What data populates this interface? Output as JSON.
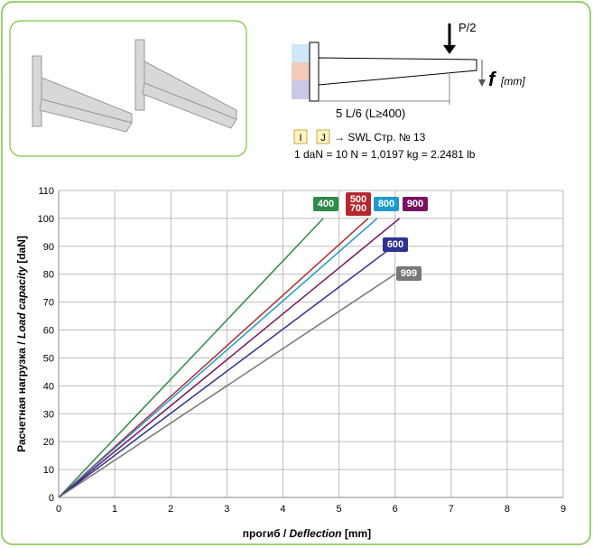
{
  "diagram": {
    "load": "P/2",
    "deflection_symbol": "f",
    "deflection_unit": "[mm]",
    "length": "5 L/6 (L≥400)",
    "marker_1": "I",
    "marker_2": "J",
    "reference": "→ SWL Стр. № 13",
    "conversion": "1 daN = 10 N = 1,0197 kg = 2.2481 lb"
  },
  "chart_data": {
    "type": "line",
    "xlabel": {
      "prefix": "прогиб / ",
      "italic": "Deflection",
      "suffix": " [mm]"
    },
    "ylabel": {
      "prefix": "Расчетная нагрузка / ",
      "italic": "Load capacity",
      "suffix": " [daN]"
    },
    "xlim": [
      0,
      9
    ],
    "xticks": [
      0,
      1,
      2,
      3,
      4,
      5,
      6,
      7,
      8,
      9
    ],
    "ylim": [
      0,
      110
    ],
    "yticks": [
      0,
      10,
      20,
      30,
      40,
      50,
      60,
      70,
      80,
      90,
      100,
      110
    ],
    "grid": true,
    "series": [
      {
        "name": "400",
        "color": "#2e8b4a",
        "x": [
          0,
          4.72
        ],
        "values": [
          0,
          100
        ]
      },
      {
        "name": "500 700",
        "color": "#b5282e",
        "x": [
          0,
          5.52
        ],
        "values": [
          0,
          100
        ]
      },
      {
        "name": "800",
        "color": "#1f9ad0",
        "x": [
          0,
          5.68
        ],
        "values": [
          0,
          100
        ]
      },
      {
        "name": "900",
        "color": "#7a1460",
        "x": [
          0,
          6.08
        ],
        "values": [
          0,
          100
        ]
      },
      {
        "name": "600",
        "color": "#2e3192",
        "x": [
          0,
          5.97
        ],
        "values": [
          0,
          90
        ]
      },
      {
        "name": "999",
        "color": "#777777",
        "x": [
          0,
          6.0
        ],
        "values": [
          0,
          80
        ]
      }
    ]
  }
}
